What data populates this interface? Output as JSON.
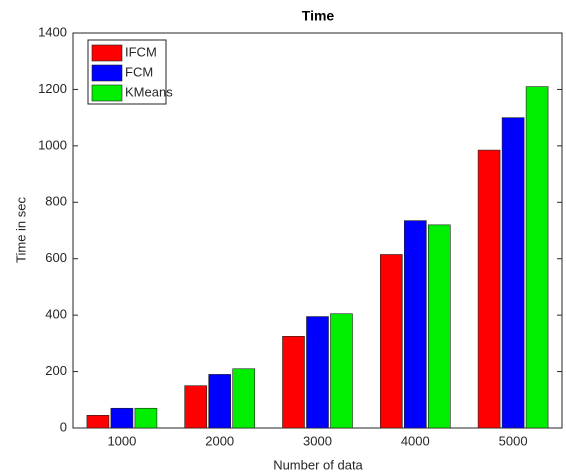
{
  "chart_data": {
    "type": "bar",
    "title": "Time",
    "x_label": "Number of data",
    "y_label": "Time in sec",
    "categories": [
      "1000",
      "2000",
      "3000",
      "4000",
      "5000"
    ],
    "series": [
      {
        "name": "IFCM",
        "color": "#ff0000",
        "values": [
          45,
          150,
          325,
          615,
          985
        ]
      },
      {
        "name": "FCM",
        "color": "#0000ff",
        "values": [
          70,
          190,
          395,
          735,
          1100
        ]
      },
      {
        "name": "KMeans",
        "color": "#00ee00",
        "values": [
          70,
          210,
          405,
          720,
          1210
        ]
      }
    ],
    "ylim": [
      0,
      1400
    ],
    "yticks": [
      0,
      200,
      400,
      600,
      800,
      1000,
      1200,
      1400
    ],
    "grid": false,
    "legend": "upper-left"
  }
}
